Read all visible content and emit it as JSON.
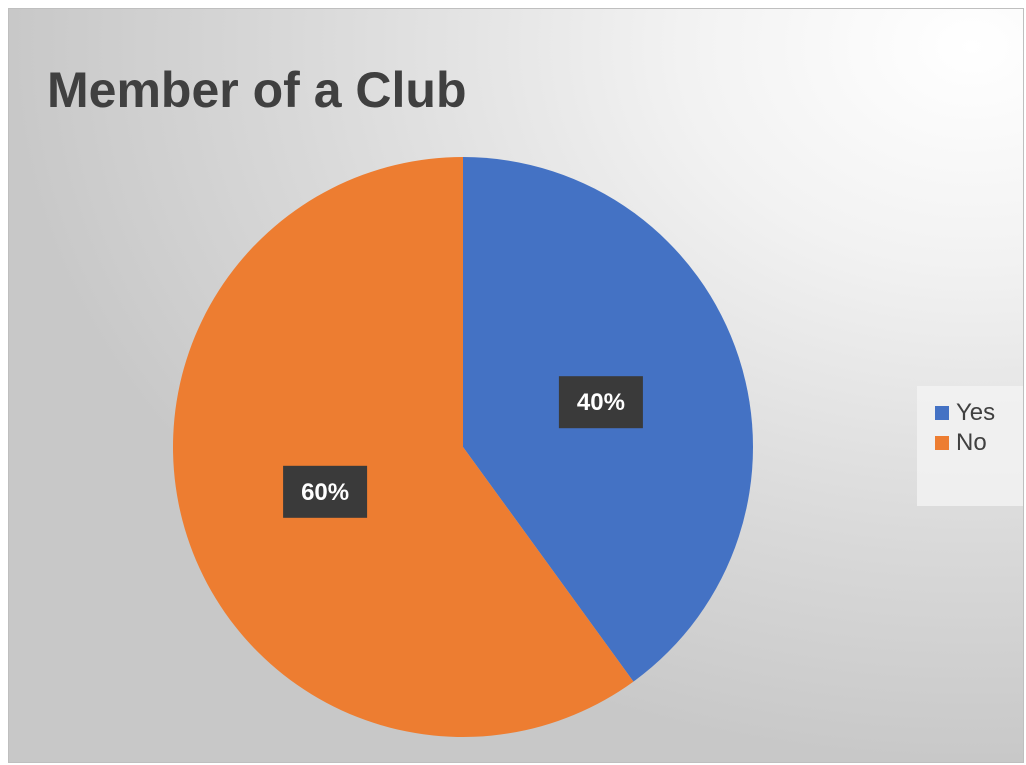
{
  "chart_data": {
    "type": "pie",
    "title": "Member of a Club",
    "categories": [
      "Yes",
      "No"
    ],
    "values": [
      40,
      60
    ],
    "data_labels": [
      "40%",
      "60%"
    ],
    "colors": [
      "#4472C4",
      "#ED7D31"
    ],
    "legend_position": "right",
    "start_angle": "top, clockwise"
  },
  "legend": {
    "items": [
      {
        "label": "Yes",
        "color": "#4472C4"
      },
      {
        "label": "No",
        "color": "#ED7D31"
      }
    ]
  }
}
